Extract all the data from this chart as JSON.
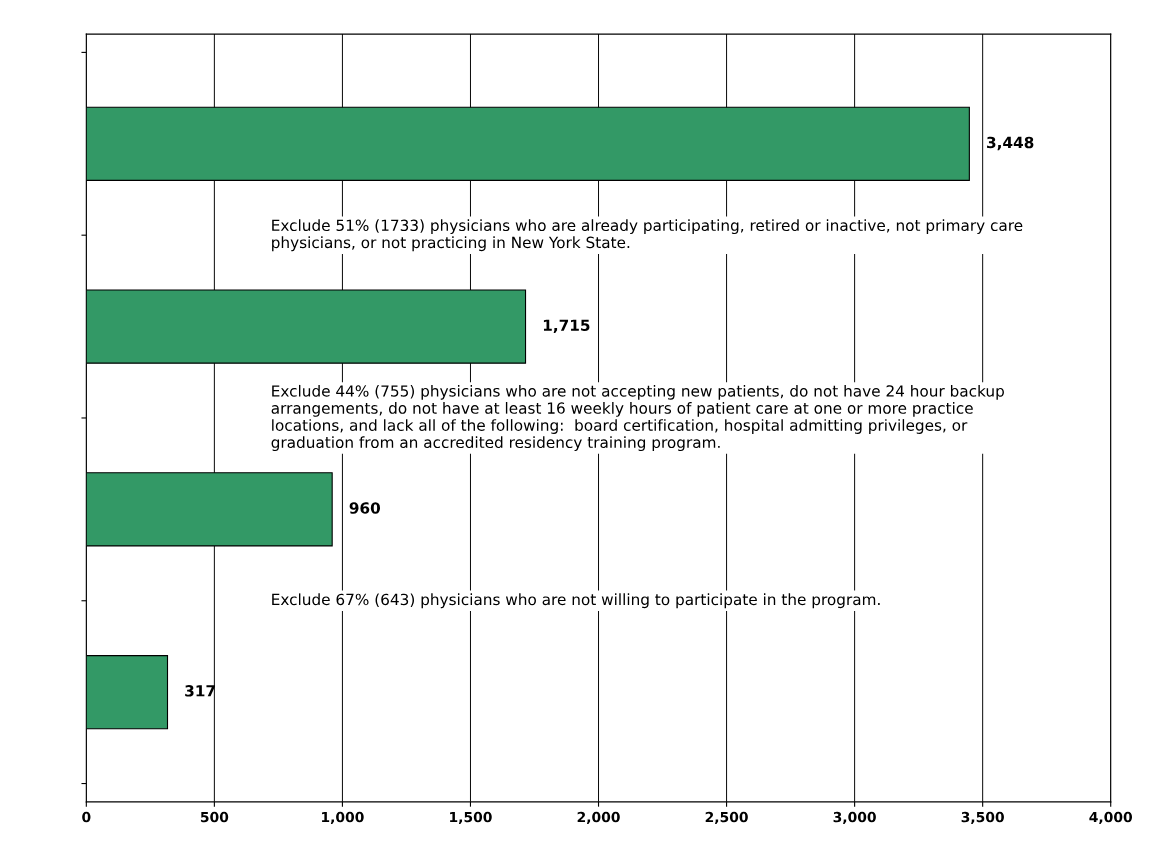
{
  "chart_data": {
    "type": "bar",
    "orientation": "horizontal",
    "categories": [
      null,
      null,
      null,
      null
    ],
    "values": [
      3448,
      1715,
      960,
      317
    ],
    "value_labels": [
      "3,448",
      "1,715",
      "960",
      "317"
    ],
    "color": "#339966",
    "xlim": [
      0,
      4000
    ],
    "xticks": [
      0,
      500,
      {
        "value": 1000,
        "label": "1,000"
      },
      {
        "value": 1500,
        "label": "1,500"
      },
      {
        "value": 2000,
        "label": "2,000"
      },
      {
        "value": 2500,
        "label": "2,500"
      },
      {
        "value": 3000,
        "label": "3,000"
      },
      {
        "value": 3500,
        "label": "3,500"
      },
      {
        "value": 4000,
        "label": "4,000"
      }
    ],
    "grid": "x",
    "tick_labels": "x",
    "annotations": [
      "Exclude 51% (1733) physicians who are already participating, retired or inactive, not primary care physicians, or not practicing in New York State.",
      "Exclude 44% (755) physicians who are not accepting new patients, do not have 24 hour backup arrangements, do not have at least 16 weekly hours of patient care at one or more practice locations, and lack all of the following:  board certification, hospital admitting privileges, or graduation from an accredited residency training program.",
      "Exclude 67% (643) physicians who are not willing to participate in the program."
    ]
  }
}
